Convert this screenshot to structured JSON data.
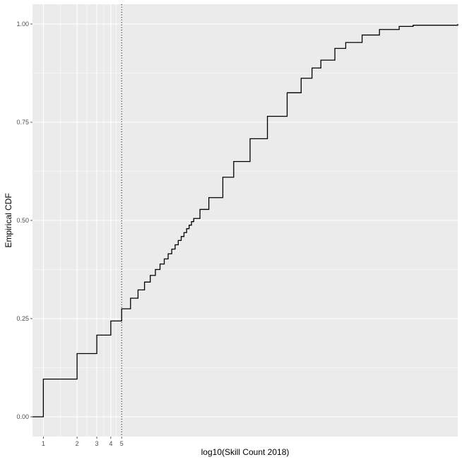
{
  "chart_data": {
    "type": "line",
    "style": "step",
    "xlabel": "log10(Skill Count 2018)",
    "ylabel": "Empirical CDF",
    "x_scale": "log10",
    "xlim": [
      0.8,
      5000
    ],
    "ylim": [
      0,
      1
    ],
    "x_ticks": [
      1,
      2,
      3,
      4,
      5
    ],
    "x_tick_labels": [
      "1",
      "2",
      "3",
      "4",
      "5"
    ],
    "y_ticks": [
      0,
      0.25,
      0.5,
      0.75,
      1
    ],
    "y_tick_labels": [
      "0.00",
      "0.25",
      "0.50",
      "0.75",
      "1.00"
    ],
    "grid": true,
    "reference_line": {
      "x": 5,
      "style": "dotted"
    },
    "series": [
      {
        "x": [
          0.8,
          1,
          2,
          3,
          4,
          5,
          6,
          7,
          8,
          9,
          10,
          11,
          12,
          13,
          14,
          15,
          16,
          17,
          18,
          19,
          20,
          21,
          22,
          25,
          30,
          40,
          50,
          70,
          100,
          150,
          200,
          250,
          300,
          400,
          500,
          700,
          1000,
          1500,
          2000,
          5000
        ],
        "y": [
          0,
          0.096,
          0.161,
          0.208,
          0.244,
          0.275,
          0.302,
          0.323,
          0.343,
          0.36,
          0.375,
          0.389,
          0.402,
          0.415,
          0.427,
          0.438,
          0.449,
          0.459,
          0.469,
          0.479,
          0.488,
          0.497,
          0.505,
          0.528,
          0.558,
          0.61,
          0.65,
          0.708,
          0.765,
          0.825,
          0.862,
          0.888,
          0.908,
          0.938,
          0.953,
          0.972,
          0.986,
          0.994,
          0.997,
          1.0
        ]
      }
    ]
  }
}
